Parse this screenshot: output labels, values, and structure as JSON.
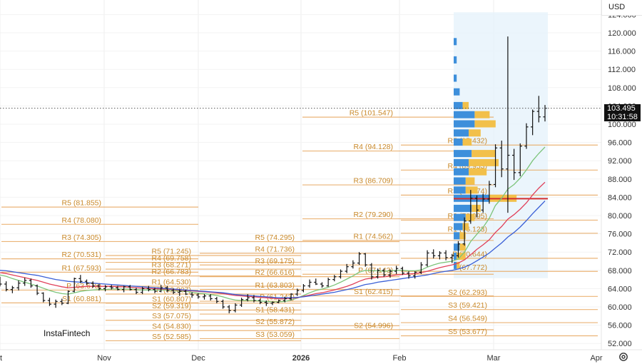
{
  "currency_selector": "USD",
  "brand": "InstaFintech",
  "last_price": {
    "price": "103.495",
    "countdown": "10:31:58"
  },
  "y_axis_ticks": [
    "124.000",
    "120.000",
    "116.000",
    "112.000",
    "108.000",
    "104.000",
    "100.000",
    "96.000",
    "92.000",
    "88.000",
    "84.000",
    "80.000",
    "76.000",
    "72.000",
    "68.000",
    "64.000",
    "60.000",
    "56.000",
    "52.000"
  ],
  "x_axis_ticks": [
    {
      "label": "t",
      "bold": false
    },
    {
      "label": "Nov",
      "bold": false
    },
    {
      "label": "Dec",
      "bold": false
    },
    {
      "label": "2026",
      "bold": true
    },
    {
      "label": "Feb",
      "bold": false
    },
    {
      "label": "Mar",
      "bold": false
    },
    {
      "label": "Apr",
      "bold": false
    }
  ],
  "colors": {
    "pivot": "#e8a860",
    "pivot_text": "#c9892a",
    "ema_fast": "#7cc47a",
    "ema_mid": "#e0405a",
    "ema_slow": "#3a5fd6",
    "volume_profile_buy": "#3d8fdb",
    "volume_profile_sell": "#f2c04a",
    "poc_line": "#d32f2f",
    "price_line": "#555555",
    "profile_bg": "#e6f2fb"
  },
  "chart_data": {
    "type": "line",
    "title": "",
    "xlabel": "",
    "ylabel": "",
    "ylim": [
      51,
      126
    ],
    "pivot_levels": [
      {
        "period": "Oct",
        "levels": [
          {
            "label": "R5 (81.855)",
            "value": 81.855
          },
          {
            "label": "R4 (78.080)",
            "value": 78.08
          },
          {
            "label": "R3 (74.305)",
            "value": 74.305
          },
          {
            "label": "R2 (70.531)",
            "value": 70.531
          },
          {
            "label": "R1 (67.593)",
            "value": 67.593
          },
          {
            "label": "P (63.678)",
            "value": 63.678
          },
          {
            "label": "S1 (60.881)",
            "value": 60.881
          }
        ]
      },
      {
        "period": "Nov",
        "levels": [
          {
            "label": "R5 (71.245)",
            "value": 71.245
          },
          {
            "label": "R4 (69.758)",
            "value": 69.758
          },
          {
            "label": "R3 (68.271)",
            "value": 68.271
          },
          {
            "label": "R2 (66.783)",
            "value": 66.783
          },
          {
            "label": "R1 (64.530)",
            "value": 64.53
          },
          {
            "label": "P (62.807)",
            "value": 62.807
          },
          {
            "label": "S1 (60.807)",
            "value": 60.807
          },
          {
            "label": "S2 (59.319)",
            "value": 59.319
          },
          {
            "label": "S3 (57.075)",
            "value": 57.075
          },
          {
            "label": "S4 (54.830)",
            "value": 54.83
          },
          {
            "label": "S5 (52.585)",
            "value": 52.585
          }
        ]
      },
      {
        "period": "Dec",
        "levels": [
          {
            "label": "R5 (74.295)",
            "value": 74.295
          },
          {
            "label": "R4 (71.736)",
            "value": 71.736
          },
          {
            "label": "R3 (69.175)",
            "value": 69.175
          },
          {
            "label": "R2 (66.616)",
            "value": 66.616
          },
          {
            "label": "R1 (63.803)",
            "value": 63.803
          },
          {
            "label": "P (61.243)",
            "value": 61.243
          },
          {
            "label": "S1 (58.431)",
            "value": 58.431
          },
          {
            "label": "S2 (55.872)",
            "value": 55.872
          },
          {
            "label": "S3 (53.059)",
            "value": 53.059
          }
        ]
      },
      {
        "period": "Jan",
        "levels": [
          {
            "label": "R5 (101.547)",
            "value": 101.547
          },
          {
            "label": "R4 (94.128)",
            "value": 94.128
          },
          {
            "label": "R3 (86.709)",
            "value": 86.709
          },
          {
            "label": "R2 (79.290)",
            "value": 79.29
          },
          {
            "label": "R1 (74.562)",
            "value": 74.562
          },
          {
            "label": "P (67.143)",
            "value": 67.143
          },
          {
            "label": "S1 (62.415)",
            "value": 62.415
          },
          {
            "label": "S2 (54.996)",
            "value": 54.996
          }
        ]
      },
      {
        "period": "Feb",
        "levels": [
          {
            "label": "R5 (95.432)",
            "value": 95.432
          },
          {
            "label": "R4 (89.953)",
            "value": 89.953
          },
          {
            "label": "R3 (84.474)",
            "value": 84.474
          },
          {
            "label": "R2 (78.995)",
            "value": 78.995
          },
          {
            "label": "R1 (76.123)",
            "value": 76.123
          },
          {
            "label": "P (70.644)",
            "value": 70.644
          },
          {
            "label": "(67.772)",
            "value": 67.772
          },
          {
            "label": "S2 (62.293)",
            "value": 62.293
          },
          {
            "label": "S3 (59.421)",
            "value": 59.421
          },
          {
            "label": "S4 (56.549)",
            "value": 56.549
          },
          {
            "label": "S5 (53.677)",
            "value": 53.677
          }
        ]
      }
    ],
    "volume_profile": {
      "poc": 83.7,
      "rows": [
        {
          "price": 118.0,
          "buy": 1,
          "sell": 0
        },
        {
          "price": 114.0,
          "buy": 1,
          "sell": 0
        },
        {
          "price": 110.0,
          "buy": 1,
          "sell": 0
        },
        {
          "price": 107.0,
          "buy": 2,
          "sell": 0
        },
        {
          "price": 104.0,
          "buy": 3,
          "sell": 2
        },
        {
          "price": 102.0,
          "buy": 7,
          "sell": 5
        },
        {
          "price": 100.0,
          "buy": 7,
          "sell": 7
        },
        {
          "price": 98.0,
          "buy": 5,
          "sell": 4
        },
        {
          "price": 96.0,
          "buy": 3,
          "sell": 3
        },
        {
          "price": 93.5,
          "buy": 6,
          "sell": 8
        },
        {
          "price": 91.5,
          "buy": 5,
          "sell": 10
        },
        {
          "price": 89.5,
          "buy": 5,
          "sell": 6
        },
        {
          "price": 87.5,
          "buy": 4,
          "sell": 3
        },
        {
          "price": 85.5,
          "buy": 4,
          "sell": 4
        },
        {
          "price": 83.7,
          "buy": 12,
          "sell": 9
        },
        {
          "price": 81.5,
          "buy": 6,
          "sell": 3
        },
        {
          "price": 79.5,
          "buy": 4,
          "sell": 3
        },
        {
          "price": 77.5,
          "buy": 3,
          "sell": 2
        },
        {
          "price": 75.5,
          "buy": 2,
          "sell": 2
        },
        {
          "price": 73.0,
          "buy": 2,
          "sell": 2
        },
        {
          "price": 71.0,
          "buy": 1,
          "sell": 3
        },
        {
          "price": 69.0,
          "buy": 1,
          "sell": 1
        }
      ]
    },
    "ohlc": [
      [
        66.0,
        66.6,
        64.5,
        65.0
      ],
      [
        65.0,
        65.6,
        63.4,
        63.8
      ],
      [
        63.8,
        64.6,
        63.0,
        64.2
      ],
      [
        64.2,
        65.8,
        63.6,
        65.2
      ],
      [
        65.2,
        66.4,
        64.6,
        65.8
      ],
      [
        65.8,
        66.2,
        64.2,
        64.6
      ],
      [
        64.6,
        64.9,
        62.6,
        63.0
      ],
      [
        63.0,
        63.2,
        61.0,
        61.4
      ],
      [
        61.4,
        62.0,
        60.2,
        60.6
      ],
      [
        60.6,
        61.6,
        59.8,
        61.2
      ],
      [
        61.2,
        61.8,
        60.4,
        60.8
      ],
      [
        60.8,
        63.6,
        60.6,
        63.4
      ],
      [
        63.4,
        66.4,
        63.2,
        66.2
      ],
      [
        66.2,
        67.0,
        65.2,
        65.6
      ],
      [
        65.6,
        66.0,
        64.8,
        65.2
      ],
      [
        65.2,
        65.6,
        64.2,
        64.6
      ],
      [
        64.6,
        65.0,
        63.6,
        64.0
      ],
      [
        64.0,
        64.8,
        63.4,
        64.4
      ],
      [
        64.4,
        64.8,
        63.8,
        64.2
      ],
      [
        64.2,
        64.6,
        63.6,
        63.8
      ],
      [
        63.8,
        64.6,
        63.2,
        64.4
      ],
      [
        64.4,
        64.8,
        63.6,
        63.8
      ],
      [
        63.8,
        64.2,
        62.8,
        63.2
      ],
      [
        63.2,
        64.4,
        62.8,
        64.0
      ],
      [
        64.0,
        64.6,
        63.4,
        63.8
      ],
      [
        63.8,
        64.2,
        63.0,
        63.4
      ],
      [
        63.4,
        64.8,
        63.2,
        64.2
      ],
      [
        64.2,
        64.6,
        63.2,
        63.6
      ],
      [
        63.6,
        64.0,
        62.8,
        63.2
      ],
      [
        63.2,
        63.8,
        62.4,
        63.4
      ],
      [
        63.4,
        63.8,
        62.6,
        62.8
      ],
      [
        62.8,
        63.2,
        62.0,
        62.6
      ],
      [
        62.6,
        63.0,
        61.8,
        62.2
      ],
      [
        62.2,
        62.8,
        61.6,
        62.4
      ],
      [
        62.4,
        62.8,
        61.4,
        61.8
      ],
      [
        61.8,
        62.2,
        60.8,
        61.2
      ],
      [
        61.2,
        61.6,
        59.6,
        60.0
      ],
      [
        60.0,
        60.4,
        58.6,
        59.2
      ],
      [
        59.2,
        60.8,
        58.8,
        60.4
      ],
      [
        60.4,
        62.0,
        60.0,
        61.6
      ],
      [
        61.6,
        62.8,
        61.2,
        62.0
      ],
      [
        62.0,
        62.6,
        61.0,
        61.4
      ],
      [
        61.4,
        61.8,
        60.6,
        61.0
      ],
      [
        61.0,
        61.4,
        60.2,
        60.8
      ],
      [
        60.8,
        61.2,
        60.4,
        61.0
      ],
      [
        61.0,
        61.6,
        60.8,
        61.4
      ],
      [
        61.4,
        62.2,
        61.0,
        61.8
      ],
      [
        61.8,
        63.0,
        61.4,
        62.8
      ],
      [
        62.8,
        64.0,
        62.4,
        63.6
      ],
      [
        63.6,
        65.0,
        63.2,
        64.6
      ],
      [
        64.6,
        66.0,
        64.2,
        65.4
      ],
      [
        65.4,
        66.2,
        64.8,
        65.0
      ],
      [
        65.0,
        65.4,
        64.2,
        64.6
      ],
      [
        64.6,
        66.4,
        64.4,
        66.0
      ],
      [
        66.0,
        67.0,
        65.6,
        66.6
      ],
      [
        66.6,
        68.2,
        66.2,
        67.8
      ],
      [
        67.8,
        69.4,
        67.4,
        68.8
      ],
      [
        68.8,
        70.2,
        68.4,
        69.6
      ],
      [
        69.6,
        72.0,
        69.2,
        71.6
      ],
      [
        71.6,
        71.8,
        68.8,
        69.2
      ],
      [
        69.2,
        69.6,
        66.0,
        66.6
      ],
      [
        66.6,
        68.4,
        66.2,
        68.0
      ],
      [
        68.0,
        68.4,
        66.6,
        67.0
      ],
      [
        67.0,
        68.2,
        66.4,
        67.8
      ],
      [
        67.8,
        69.0,
        67.2,
        68.4
      ],
      [
        68.4,
        68.8,
        67.0,
        67.4
      ],
      [
        67.4,
        67.8,
        66.2,
        66.8
      ],
      [
        66.8,
        67.8,
        66.2,
        67.6
      ],
      [
        67.6,
        69.8,
        67.2,
        69.2
      ],
      [
        69.2,
        72.4,
        68.8,
        71.8
      ],
      [
        71.8,
        72.6,
        70.6,
        71.2
      ],
      [
        71.2,
        72.2,
        70.4,
        71.8
      ],
      [
        71.8,
        72.4,
        70.2,
        70.8
      ],
      [
        70.8,
        71.6,
        69.6,
        71.2
      ],
      [
        71.2,
        74.4,
        70.8,
        73.8
      ],
      [
        73.8,
        79.6,
        73.4,
        78.8
      ],
      [
        78.8,
        85.6,
        78.2,
        83.8
      ],
      [
        83.8,
        84.4,
        79.6,
        81.2
      ],
      [
        81.2,
        84.8,
        80.6,
        83.6
      ],
      [
        83.6,
        87.6,
        82.6,
        86.8
      ],
      [
        86.8,
        95.6,
        86.2,
        94.8
      ],
      [
        94.8,
        96.4,
        88.4,
        90.2
      ],
      [
        90.2,
        119.2,
        80.6,
        93.2
      ],
      [
        93.2,
        94.6,
        87.8,
        89.4
      ],
      [
        89.4,
        95.8,
        88.6,
        95.2
      ],
      [
        95.2,
        100.2,
        94.6,
        99.4
      ],
      [
        99.4,
        103.2,
        97.6,
        102.8
      ],
      [
        102.8,
        106.2,
        100.4,
        101.6
      ],
      [
        101.6,
        104.2,
        100.6,
        103.5
      ]
    ],
    "ma_series": [
      {
        "values": [
          67.0,
          66.7,
          66.2,
          65.8,
          65.4,
          65.0,
          64.6,
          64.1,
          63.6,
          63.2,
          62.9,
          62.8,
          63.1,
          63.4,
          63.6,
          63.7,
          63.8,
          63.8,
          63.9,
          63.9,
          63.9,
          63.9,
          63.8,
          63.7,
          63.7,
          63.7,
          63.7,
          63.7,
          63.6,
          63.5,
          63.4,
          63.2,
          63.0,
          62.9,
          62.7,
          62.5,
          62.2,
          61.8,
          61.5,
          61.4,
          61.4,
          61.4,
          61.3,
          61.2,
          61.1,
          61.1,
          61.2,
          61.5,
          61.9,
          62.5,
          63.1,
          63.6,
          63.9,
          64.3,
          64.8,
          65.4,
          66.1,
          66.8,
          67.6,
          68.0,
          67.9,
          67.9,
          67.8,
          67.9,
          68.0,
          68.0,
          67.9,
          67.9,
          68.1,
          68.7,
          69.2,
          69.6,
          69.8,
          70.0,
          70.5,
          72.0,
          74.3,
          75.9,
          77.4,
          79.4,
          82.2,
          83.8,
          85.8,
          86.8,
          88.2,
          90.0,
          92.0,
          93.6,
          95.0
        ]
      },
      {
        "values": [
          67.5,
          67.3,
          67.0,
          66.7,
          66.4,
          66.1,
          65.8,
          65.4,
          65.0,
          64.7,
          64.4,
          64.2,
          64.3,
          64.4,
          64.5,
          64.5,
          64.5,
          64.5,
          64.5,
          64.4,
          64.4,
          64.3,
          64.2,
          64.1,
          64.0,
          64.0,
          63.9,
          63.9,
          63.8,
          63.7,
          63.6,
          63.5,
          63.4,
          63.3,
          63.2,
          63.1,
          62.9,
          62.7,
          62.5,
          62.4,
          62.3,
          62.2,
          62.1,
          62.0,
          61.9,
          61.8,
          61.8,
          61.9,
          62.0,
          62.3,
          62.6,
          62.9,
          63.1,
          63.4,
          63.7,
          64.1,
          64.5,
          65.0,
          65.6,
          66.1,
          66.3,
          66.5,
          66.6,
          66.8,
          67.0,
          67.1,
          67.2,
          67.3,
          67.5,
          67.8,
          68.2,
          68.6,
          68.9,
          69.2,
          69.6,
          70.3,
          71.4,
          72.6,
          73.6,
          74.7,
          76.3,
          77.6,
          79.2,
          80.2,
          81.4,
          82.8,
          84.5,
          86.0,
          87.3
        ]
      },
      {
        "values": [
          68.0,
          67.9,
          67.7,
          67.5,
          67.3,
          67.1,
          66.9,
          66.6,
          66.3,
          66.0,
          65.8,
          65.6,
          65.5,
          65.4,
          65.3,
          65.2,
          65.1,
          65.0,
          64.9,
          64.8,
          64.7,
          64.6,
          64.5,
          64.4,
          64.3,
          64.2,
          64.1,
          64.0,
          63.9,
          63.8,
          63.7,
          63.6,
          63.5,
          63.4,
          63.3,
          63.2,
          63.1,
          62.9,
          62.7,
          62.6,
          62.5,
          62.4,
          62.3,
          62.2,
          62.1,
          62.0,
          62.0,
          62.0,
          62.1,
          62.2,
          62.4,
          62.6,
          62.8,
          63.0,
          63.2,
          63.5,
          63.8,
          64.1,
          64.5,
          64.9,
          65.1,
          65.4,
          65.6,
          65.8,
          66.0,
          66.2,
          66.4,
          66.6,
          66.8,
          67.0,
          67.3,
          67.6,
          67.8,
          68.0,
          68.3,
          68.7,
          69.3,
          70.1,
          70.9,
          71.8,
          72.9,
          74.0,
          75.3,
          76.3,
          77.5,
          78.9,
          80.4,
          81.8,
          83.2
        ]
      }
    ]
  }
}
